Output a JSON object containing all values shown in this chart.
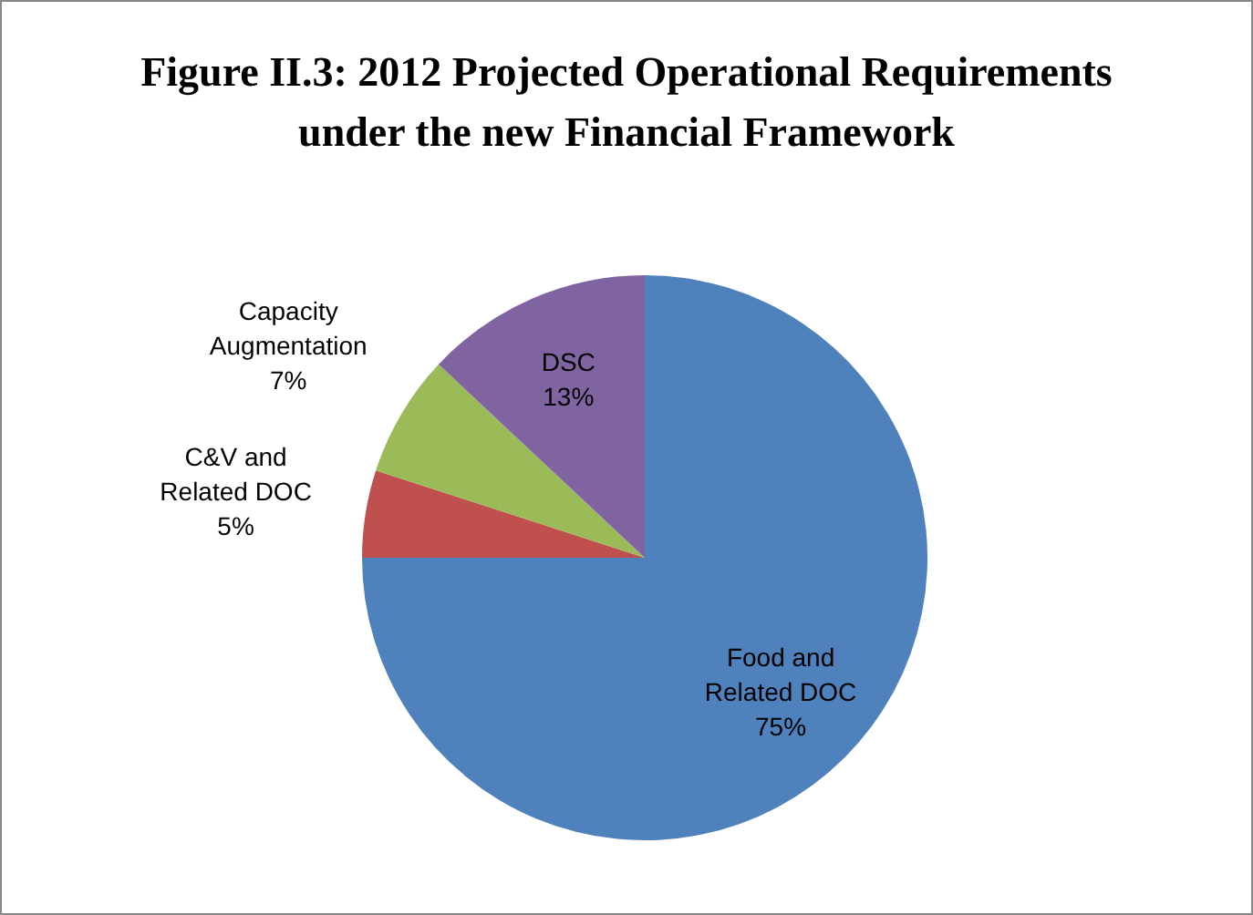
{
  "chart_data": {
    "type": "pie",
    "title": "Figure II.3: 2012 Projected Operational Requirements under the new Financial Framework",
    "categories": [
      "Food and Related DOC",
      "C&V and Related DOC",
      "Capacity Augmentation",
      "DSC"
    ],
    "values": [
      75,
      5,
      7,
      13
    ],
    "colors": [
      "#4f81bd",
      "#c0504d",
      "#9bbb59",
      "#8064a2"
    ],
    "value_labels": [
      "75%",
      "5%",
      "7%",
      "13%"
    ],
    "legend": false
  }
}
